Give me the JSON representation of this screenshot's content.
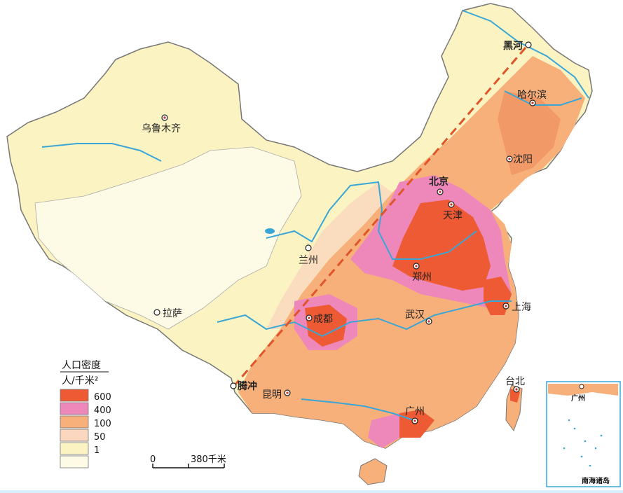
{
  "cities": [
    {
      "id": "heihe",
      "name": "黑河",
      "bold": true
    },
    {
      "id": "harbin",
      "name": "哈尔滨",
      "bold": false
    },
    {
      "id": "wulumuqi",
      "name": "乌鲁木齐",
      "bold": false
    },
    {
      "id": "shenyang",
      "name": "沈阳",
      "bold": false
    },
    {
      "id": "beijing",
      "name": "北京",
      "bold": true
    },
    {
      "id": "tianjin",
      "name": "天津",
      "bold": false
    },
    {
      "id": "lanzhou",
      "name": "兰州",
      "bold": false
    },
    {
      "id": "zhengzhou",
      "name": "郑州",
      "bold": false
    },
    {
      "id": "lasa",
      "name": "拉萨",
      "bold": false
    },
    {
      "id": "chengdu",
      "name": "成都",
      "bold": false
    },
    {
      "id": "wuhan",
      "name": "武汉",
      "bold": false
    },
    {
      "id": "shanghai",
      "name": "上海",
      "bold": false
    },
    {
      "id": "tengchong",
      "name": "腾冲",
      "bold": true
    },
    {
      "id": "kunming",
      "name": "昆明",
      "bold": false
    },
    {
      "id": "taibei",
      "name": "台北",
      "bold": false
    },
    {
      "id": "guangzhou",
      "name": "广州",
      "bold": false
    }
  ],
  "legend": {
    "title": "人口密度",
    "unit": "人/千米²",
    "items": [
      {
        "label": "600",
        "color": "#ee5a33"
      },
      {
        "label": "400",
        "color": "#ee88bb"
      },
      {
        "label": "100",
        "color": "#f7b07a"
      },
      {
        "label": "50",
        "color": "#fad7be"
      },
      {
        "label": "1",
        "color": "#fbf3c1"
      }
    ],
    "empty_color": "#fdfbe6"
  },
  "scale_bar": {
    "start": "0",
    "end": "380千米"
  },
  "inset": {
    "title": "南海诸岛",
    "city": "广州"
  },
  "colors": {
    "sea": "#d9eef8",
    "river": "#3aa6d8",
    "boundary": "#666666",
    "dashed_line": "#e0542a"
  }
}
